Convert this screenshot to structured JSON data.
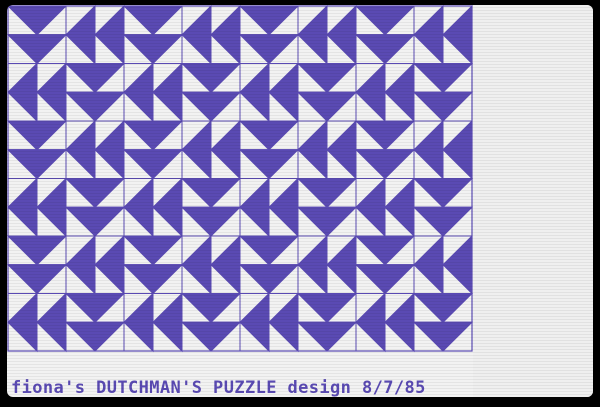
{
  "caption": "fiona's DUTCHMAN'S PUZZLE design 8/7/85",
  "colors": {
    "background": "#f2f2f2",
    "fill": "#5a4ab3",
    "line": "#5a4ab3",
    "caption": "#5a4ab3"
  }
}
